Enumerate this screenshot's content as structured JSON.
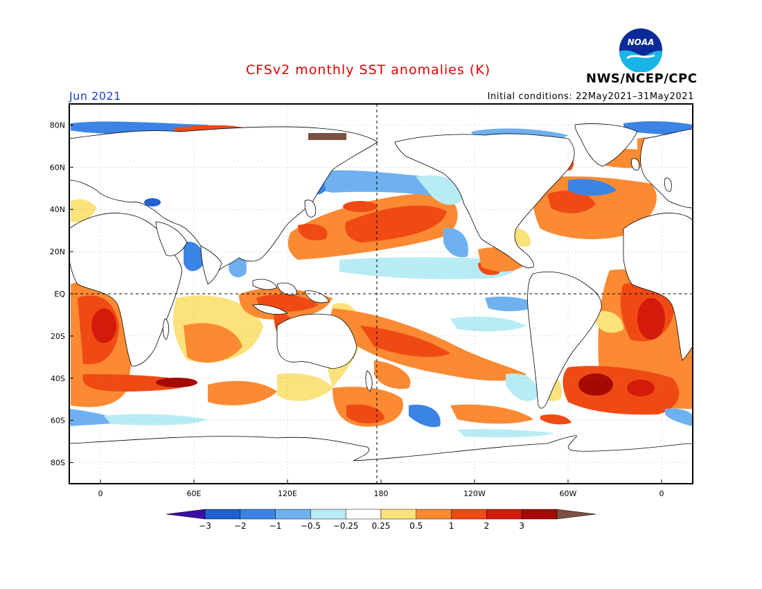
{
  "header": {
    "title": "CFSv2 monthly SST anomalies (K)",
    "agency": "NWS/NCEP/CPC",
    "logo_text": "NOAA",
    "month": "Jun 2021",
    "initial_conditions": "Initial conditions: 22May2021–31May2021"
  },
  "map": {
    "projection": "cylindrical",
    "lon_range": [
      -20,
      380
    ],
    "lat_range": [
      -90,
      90
    ],
    "lat_ticks": [
      {
        "lat": 80,
        "label": "80N"
      },
      {
        "lat": 60,
        "label": "60N"
      },
      {
        "lat": 40,
        "label": "40N"
      },
      {
        "lat": 20,
        "label": "20N"
      },
      {
        "lat": 0,
        "label": "EQ"
      },
      {
        "lat": -20,
        "label": "20S"
      },
      {
        "lat": -40,
        "label": "40S"
      },
      {
        "lat": -60,
        "label": "60S"
      },
      {
        "lat": -80,
        "label": "80S"
      }
    ],
    "lon_ticks": [
      {
        "lon": 0,
        "label": "0"
      },
      {
        "lon": 60,
        "label": "60E"
      },
      {
        "lon": 120,
        "label": "120E"
      },
      {
        "lon": 180,
        "label": "180"
      },
      {
        "lon": 240,
        "label": "120W"
      },
      {
        "lon": 300,
        "label": "60W"
      },
      {
        "lon": 360,
        "label": "0"
      }
    ],
    "reference_lines": [
      "equator",
      "dateline"
    ]
  },
  "colorbar": {
    "labels": [
      "−3",
      "−2",
      "−1",
      "−0.5",
      "−0.25",
      "0.25",
      "0.5",
      "1",
      "2",
      "3"
    ],
    "colors": [
      "#3a0da8",
      "#1f5fd0",
      "#3b84e6",
      "#6fb1f0",
      "#b8ecf5",
      "#ffffff",
      "#fce27a",
      "#fb8a32",
      "#f04a14",
      "#d41a0a",
      "#a50a00",
      "#7a5040"
    ]
  }
}
